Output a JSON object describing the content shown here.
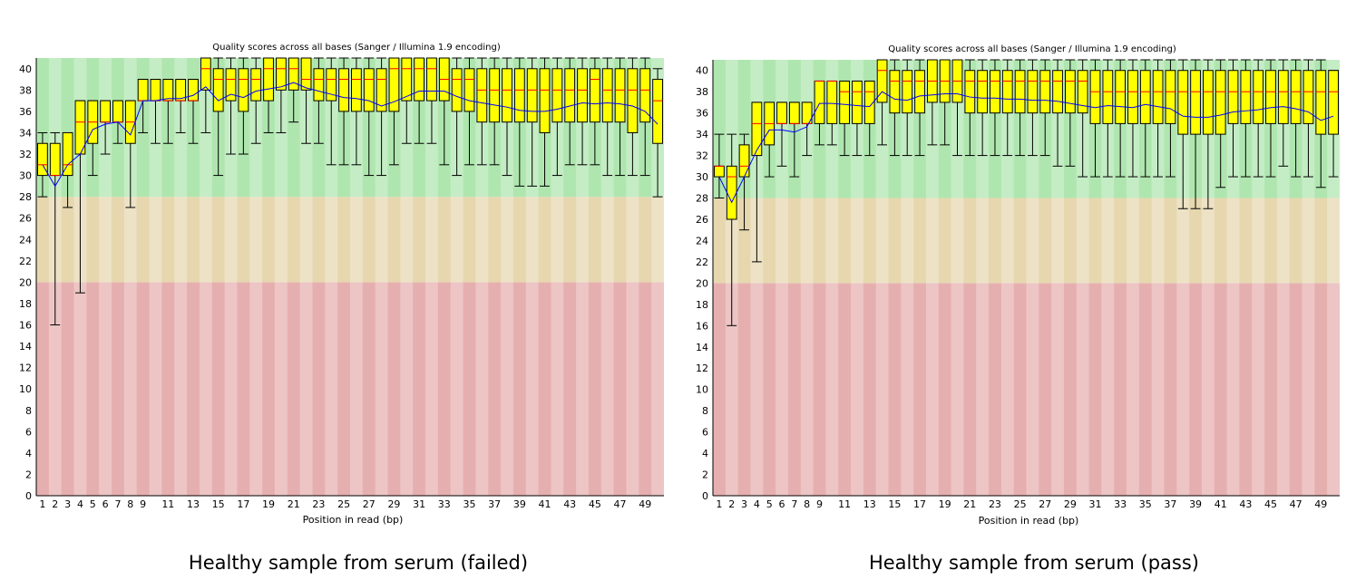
{
  "chart_data": [
    {
      "type": "box",
      "title": "Quality scores across all bases (Sanger / Illumina 1.9 encoding)",
      "xlabel": "Position in read (bp)",
      "ylabel": "",
      "caption": "Healthy sample from serum (failed)",
      "ylim": [
        0,
        41
      ],
      "yticks": [
        0,
        2,
        4,
        6,
        8,
        10,
        12,
        14,
        16,
        18,
        20,
        22,
        24,
        26,
        28,
        30,
        32,
        34,
        36,
        38,
        40
      ],
      "xtick_labels": [
        "1",
        "2",
        "3",
        "4",
        "5",
        "6",
        "7",
        "8",
        "9",
        "11",
        "13",
        "15",
        "17",
        "19",
        "21",
        "23",
        "25",
        "27",
        "29",
        "31",
        "33",
        "35",
        "37",
        "39",
        "41",
        "43",
        "45",
        "47",
        "49"
      ],
      "bands": [
        {
          "from": 0,
          "to": 20,
          "color": "#e6afaf"
        },
        {
          "from": 20,
          "to": 28,
          "color": "#e6d7af"
        },
        {
          "from": 28,
          "to": 41,
          "color": "#afe6af"
        }
      ],
      "box_color": "#ffff00",
      "median_color": "#ff0000",
      "mean_color": "#0000ff",
      "positions": [
        1,
        2,
        3,
        4,
        5,
        6,
        7,
        8,
        9,
        10,
        11,
        12,
        13,
        14,
        15,
        16,
        17,
        18,
        19,
        20,
        21,
        22,
        23,
        24,
        25,
        26,
        27,
        28,
        29,
        30,
        31,
        32,
        33,
        34,
        35,
        36,
        37,
        38,
        39,
        40,
        41,
        42,
        43,
        44,
        45,
        46,
        47,
        48,
        49,
        50
      ],
      "q1": [
        30,
        30,
        30,
        32,
        33,
        35,
        35,
        33,
        37,
        37,
        37,
        37,
        37,
        38,
        36,
        37,
        36,
        37,
        37,
        38,
        38,
        38,
        37,
        37,
        36,
        36,
        36,
        36,
        36,
        37,
        37,
        37,
        37,
        36,
        36,
        35,
        35,
        35,
        35,
        35,
        34,
        35,
        35,
        35,
        35,
        35,
        35,
        34,
        35,
        33
      ],
      "median": [
        31,
        30,
        31,
        35,
        35,
        35,
        35,
        35,
        37,
        37,
        37,
        37,
        37,
        40,
        39,
        39,
        39,
        39,
        40,
        40,
        40,
        39,
        39,
        39,
        39,
        39,
        39,
        39,
        40,
        40,
        40,
        40,
        39,
        39,
        39,
        38,
        38,
        38,
        38,
        38,
        38,
        38,
        38,
        38,
        39,
        38,
        38,
        38,
        38,
        37
      ],
      "q3": [
        33,
        33,
        34,
        37,
        37,
        37,
        37,
        37,
        39,
        39,
        39,
        39,
        39,
        41,
        40,
        40,
        40,
        40,
        41,
        41,
        41,
        41,
        40,
        40,
        40,
        40,
        40,
        40,
        41,
        41,
        41,
        41,
        41,
        40,
        40,
        40,
        40,
        40,
        40,
        40,
        40,
        40,
        40,
        40,
        40,
        40,
        40,
        40,
        40,
        39
      ],
      "lower": [
        28,
        16,
        27,
        19,
        30,
        32,
        33,
        27,
        34,
        33,
        33,
        34,
        33,
        34,
        30,
        32,
        32,
        33,
        34,
        34,
        35,
        33,
        33,
        31,
        31,
        31,
        30,
        30,
        31,
        33,
        33,
        33,
        31,
        30,
        31,
        31,
        31,
        30,
        29,
        29,
        29,
        30,
        31,
        31,
        31,
        30,
        30,
        30,
        30,
        28
      ],
      "upper": [
        34,
        34,
        34,
        37,
        37,
        37,
        37,
        37,
        39,
        39,
        39,
        39,
        39,
        41,
        41,
        41,
        41,
        41,
        41,
        41,
        41,
        41,
        41,
        41,
        41,
        41,
        41,
        41,
        41,
        41,
        41,
        41,
        41,
        41,
        41,
        41,
        41,
        41,
        41,
        41,
        41,
        41,
        41,
        41,
        41,
        41,
        41,
        41,
        41,
        40
      ],
      "mean": [
        31,
        29,
        31,
        32,
        34.3,
        34.8,
        35,
        33.8,
        37,
        37,
        37.2,
        37.2,
        37.5,
        38.3,
        37,
        37.6,
        37.3,
        37.9,
        38.1,
        38.3,
        38.7,
        38.2,
        37.9,
        37.6,
        37.3,
        37.2,
        37,
        36.5,
        36.9,
        37.4,
        37.9,
        37.9,
        37.9,
        37.4,
        37,
        36.8,
        36.6,
        36.4,
        36.1,
        36,
        36,
        36.2,
        36.5,
        36.8,
        36.7,
        36.8,
        36.7,
        36.5,
        36,
        34.8
      ]
    },
    {
      "type": "box",
      "title": "Quality scores across all bases (Sanger / Illumina 1.9 encoding)",
      "xlabel": "Position in read (bp)",
      "ylabel": "",
      "caption": "Healthy sample from serum (pass)",
      "ylim": [
        0,
        41
      ],
      "yticks": [
        0,
        2,
        4,
        6,
        8,
        10,
        12,
        14,
        16,
        18,
        20,
        22,
        24,
        26,
        28,
        30,
        32,
        34,
        36,
        38,
        40
      ],
      "xtick_labels": [
        "1",
        "2",
        "3",
        "4",
        "5",
        "6",
        "7",
        "8",
        "9",
        "11",
        "13",
        "15",
        "17",
        "19",
        "21",
        "23",
        "25",
        "27",
        "29",
        "31",
        "33",
        "35",
        "37",
        "39",
        "41",
        "43",
        "45",
        "47",
        "49"
      ],
      "bands": [
        {
          "from": 0,
          "to": 20,
          "color": "#e6afaf"
        },
        {
          "from": 20,
          "to": 28,
          "color": "#e6d7af"
        },
        {
          "from": 28,
          "to": 41,
          "color": "#afe6af"
        }
      ],
      "box_color": "#ffff00",
      "median_color": "#ff0000",
      "mean_color": "#0000ff",
      "positions": [
        1,
        2,
        3,
        4,
        5,
        6,
        7,
        8,
        9,
        10,
        11,
        12,
        13,
        14,
        15,
        16,
        17,
        18,
        19,
        20,
        21,
        22,
        23,
        24,
        25,
        26,
        27,
        28,
        29,
        30,
        31,
        32,
        33,
        34,
        35,
        36,
        37,
        38,
        39,
        40,
        41,
        42,
        43,
        44,
        45,
        46,
        47,
        48,
        49,
        50
      ],
      "q1": [
        30,
        26,
        30,
        32,
        33,
        35,
        35,
        35,
        35,
        35,
        35,
        35,
        35,
        37,
        36,
        36,
        36,
        37,
        37,
        37,
        36,
        36,
        36,
        36,
        36,
        36,
        36,
        36,
        36,
        36,
        35,
        35,
        35,
        35,
        35,
        35,
        35,
        34,
        34,
        34,
        34,
        35,
        35,
        35,
        35,
        35,
        35,
        35,
        34,
        34
      ],
      "median": [
        31,
        30,
        31,
        35,
        35,
        35,
        35,
        35,
        39,
        39,
        38,
        38,
        38,
        40,
        39,
        39,
        39,
        39,
        39,
        39,
        39,
        39,
        39,
        39,
        39,
        39,
        39,
        39,
        39,
        39,
        38,
        38,
        38,
        38,
        38,
        38,
        38,
        38,
        38,
        38,
        38,
        38,
        38,
        38,
        38,
        38,
        38,
        38,
        38,
        38
      ],
      "q3": [
        31,
        31,
        33,
        37,
        37,
        37,
        37,
        37,
        39,
        39,
        39,
        39,
        39,
        41,
        40,
        40,
        40,
        41,
        41,
        41,
        40,
        40,
        40,
        40,
        40,
        40,
        40,
        40,
        40,
        40,
        40,
        40,
        40,
        40,
        40,
        40,
        40,
        40,
        40,
        40,
        40,
        40,
        40,
        40,
        40,
        40,
        40,
        40,
        40,
        40
      ],
      "lower": [
        28,
        16,
        25,
        22,
        30,
        31,
        30,
        32,
        33,
        33,
        32,
        32,
        32,
        33,
        32,
        32,
        32,
        33,
        33,
        32,
        32,
        32,
        32,
        32,
        32,
        32,
        32,
        31,
        31,
        30,
        30,
        30,
        30,
        30,
        30,
        30,
        30,
        27,
        27,
        27,
        29,
        30,
        30,
        30,
        30,
        31,
        30,
        30,
        29,
        30
      ],
      "upper": [
        34,
        34,
        34,
        37,
        37,
        37,
        37,
        37,
        39,
        39,
        39,
        39,
        39,
        41,
        41,
        41,
        41,
        41,
        41,
        41,
        41,
        41,
        41,
        41,
        41,
        41,
        41,
        41,
        41,
        41,
        41,
        41,
        41,
        41,
        41,
        41,
        41,
        41,
        41,
        41,
        41,
        41,
        41,
        41,
        41,
        41,
        41,
        41,
        41,
        40
      ],
      "mean": [
        30,
        27.6,
        30,
        32.5,
        34.4,
        34.4,
        34.2,
        34.7,
        36.9,
        36.9,
        36.8,
        36.7,
        36.6,
        38,
        37.3,
        37.2,
        37.6,
        37.7,
        37.8,
        37.8,
        37.5,
        37.4,
        37.4,
        37.3,
        37.3,
        37.2,
        37.2,
        37.1,
        36.9,
        36.7,
        36.5,
        36.7,
        36.6,
        36.5,
        36.8,
        36.6,
        36.4,
        35.7,
        35.6,
        35.6,
        35.8,
        36.1,
        36.2,
        36.3,
        36.5,
        36.6,
        36.4,
        36.1,
        35.3,
        35.7
      ]
    }
  ]
}
